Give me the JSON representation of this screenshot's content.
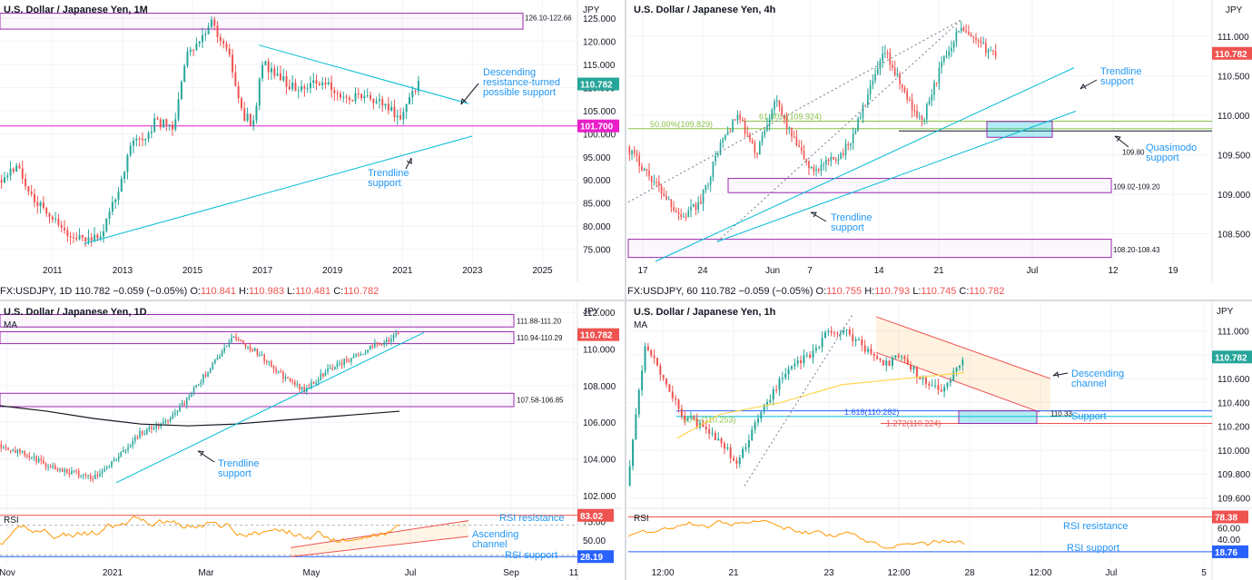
{
  "panels": [
    {
      "id": "monthly",
      "title": "U.S. Dollar / Japanese Yen, 1M",
      "currency": "JPY",
      "last_price": "110.782",
      "last_price_color": "#26a69a",
      "x_ticks": [
        "2011",
        "2013",
        "2015",
        "2017",
        "2019",
        "2021",
        "2023",
        "2025"
      ],
      "y_ticks": [
        "75.000",
        "80.000",
        "85.000",
        "90.000",
        "95.000",
        "100.000",
        "105.000",
        "110.000",
        "115.000",
        "120.000",
        "125.000"
      ],
      "level_tags": [
        {
          "text": "101.700",
          "color": "#e91ec9"
        }
      ],
      "zone_labels": [
        "126.10-122.66"
      ],
      "annotations": [
        "Descending",
        "resistance-turned",
        "possible support",
        "Trendline",
        "support"
      ]
    },
    {
      "id": "h4",
      "title": "U.S. Dollar / Japanese Yen, 4h",
      "currency": "JPY",
      "last_price": "110.782",
      "last_price_color": "#ef5350",
      "x_ticks": [
        "17",
        "24",
        "Jun",
        "7",
        "14",
        "21",
        "Jul",
        "12",
        "19"
      ],
      "y_ticks": [
        "108.500",
        "109.000",
        "109.500",
        "110.000",
        "110.500",
        "111.000"
      ],
      "zone_labels": [
        "109.02-109.20",
        "108.20-108.43",
        "109.80"
      ],
      "fib_labels": [
        "61.80%(109.924)",
        "50.00%(109.829)"
      ],
      "annotations": [
        "Trendline",
        "support",
        "Quasimodo",
        "support",
        "Trendline",
        "support"
      ]
    },
    {
      "id": "daily",
      "title": "U.S. Dollar / Japanese Yen, 1D",
      "currency": "JPY",
      "indicator": "MA",
      "last_price": "110.782",
      "last_price_color": "#ef5350",
      "x_ticks": [
        "Nov",
        "2021",
        "Mar",
        "May",
        "Jul",
        "Sep",
        "11"
      ],
      "y_ticks": [
        "102.000",
        "104.000",
        "106.000",
        "108.000",
        "110.000",
        "112.000"
      ],
      "zone_labels": [
        "111.88-111.20",
        "110.94-110.29",
        "107.58-106.85"
      ],
      "annotations": [
        "Trendline",
        "support"
      ],
      "rsi": {
        "label": "RSI",
        "y_ticks": [
          "50.00",
          "75.00"
        ],
        "tags": [
          {
            "text": "83.02",
            "color": "#ef5350"
          },
          {
            "text": "28.19",
            "color": "#2962ff"
          }
        ],
        "annotations": [
          "RSI resistance",
          "Ascending",
          "channel",
          "RSI support"
        ]
      }
    },
    {
      "id": "h1",
      "title": "U.S. Dollar / Japanese Yen, 1h",
      "currency": "JPY",
      "indicator": "MA",
      "last_price": "110.782",
      "last_price_color": "#26a69a",
      "x_ticks": [
        "12:00",
        "21",
        "23",
        "12:00",
        "28",
        "12:00",
        "Jul",
        "5"
      ],
      "y_ticks": [
        "109.600",
        "109.800",
        "110.000",
        "110.200",
        "110.400",
        "110.600",
        "110.800",
        "111.000"
      ],
      "zone_labels": [
        "110.33"
      ],
      "fib_labels": [
        "1.618(110.282)",
        "1.272(110.224)",
        "50% (110.253)"
      ],
      "annotations": [
        "Descending",
        "channel",
        "Support"
      ],
      "rsi": {
        "label": "RSI",
        "y_ticks": [
          "40.00",
          "60.00"
        ],
        "tags": [
          {
            "text": "78.38",
            "color": "#ef5350"
          },
          {
            "text": "18.76",
            "color": "#2962ff"
          }
        ],
        "annotations": [
          "RSI resistance",
          "RSI support"
        ]
      }
    }
  ],
  "ohlc_bars": [
    {
      "symbol": "FX:USDJPY, 1D",
      "last": "110.782",
      "change": "−0.059 (−0.05%)",
      "o_label": "O:",
      "o": "110.841",
      "h_label": "H:",
      "h": "110.983",
      "l_label": "L:",
      "l": "110.481",
      "c_label": "C:",
      "c": "110.782"
    },
    {
      "symbol": "FX:USDJPY, 60",
      "last": "110.782",
      "change": "−0.059 (−0.05%)",
      "o_label": "O:",
      "o": "110.755",
      "h_label": "H:",
      "h": "110.793",
      "l_label": "L:",
      "l": "110.745",
      "c_label": "C:",
      "c": "110.782"
    }
  ],
  "colors": {
    "up": "#26a69a",
    "down": "#ef5350",
    "zone": "#9c27b0",
    "trend": "#00bcd4",
    "annotation": "#2196f3",
    "magenta": "#e91ec9",
    "fib": "#8bc34a",
    "ma_black": "#131722",
    "ma_yellow": "#ffd54f",
    "rsi_line": "#ff9800"
  },
  "chart_data": [
    {
      "type": "candlestick",
      "panel": "monthly",
      "x_range": [
        2009.5,
        2026
      ],
      "ylim": [
        70,
        127
      ],
      "grid": true,
      "levels": [
        {
          "value": 101.7,
          "kind": "support"
        }
      ],
      "zones": [
        {
          "low": 122.66,
          "high": 126.1
        }
      ],
      "series_points": [
        [
          2009.5,
          90
        ],
        [
          2010,
          93
        ],
        [
          2010.5,
          86
        ],
        [
          2011,
          82
        ],
        [
          2011.5,
          78
        ],
        [
          2012,
          77
        ],
        [
          2012.5,
          79
        ],
        [
          2013,
          90
        ],
        [
          2013.3,
          98
        ],
        [
          2013.7,
          98
        ],
        [
          2014,
          103
        ],
        [
          2014.5,
          101
        ],
        [
          2014.9,
          118
        ],
        [
          2015.3,
          121
        ],
        [
          2015.6,
          124
        ],
        [
          2016,
          119
        ],
        [
          2016.5,
          104
        ],
        [
          2016.8,
          102
        ],
        [
          2017,
          116
        ],
        [
          2017.5,
          112
        ],
        [
          2018,
          110
        ],
        [
          2018.5,
          111
        ],
        [
          2019,
          110
        ],
        [
          2019.5,
          107
        ],
        [
          2020,
          109
        ],
        [
          2020.3,
          107
        ],
        [
          2020.7,
          105
        ],
        [
          2021,
          104
        ],
        [
          2021.3,
          109
        ],
        [
          2021.5,
          110.8
        ]
      ]
    },
    {
      "type": "candlestick",
      "panel": "h4",
      "ylim": [
        108.15,
        111.25
      ],
      "grid": true,
      "fib": [
        {
          "label": "61.80%",
          "value": 109.924
        },
        {
          "label": "50.00%",
          "value": 109.829
        }
      ],
      "zones": [
        {
          "low": 109.02,
          "high": 109.2
        },
        {
          "low": 108.2,
          "high": 108.43
        }
      ],
      "levels": [
        {
          "value": 109.8,
          "kind": "quasimodo support"
        }
      ],
      "series_points": [
        [
          0,
          109.6
        ],
        [
          4,
          109.3
        ],
        [
          8,
          109.0
        ],
        [
          12,
          108.7
        ],
        [
          16,
          108.9
        ],
        [
          20,
          109.6
        ],
        [
          24,
          110.0
        ],
        [
          28,
          109.5
        ],
        [
          32,
          110.2
        ],
        [
          36,
          109.7
        ],
        [
          40,
          109.3
        ],
        [
          44,
          109.4
        ],
        [
          48,
          109.6
        ],
        [
          52,
          110.2
        ],
        [
          56,
          110.8
        ],
        [
          60,
          110.3
        ],
        [
          64,
          109.9
        ],
        [
          68,
          110.6
        ],
        [
          72,
          111.1
        ],
        [
          76,
          110.9
        ],
        [
          80,
          110.78
        ]
      ]
    },
    {
      "type": "candlestick",
      "panel": "daily",
      "ylim": [
        101.5,
        112.4
      ],
      "grid": true,
      "zones": [
        {
          "low": 111.2,
          "high": 111.88
        },
        {
          "low": 110.29,
          "high": 110.94
        },
        {
          "low": 106.85,
          "high": 107.58
        }
      ],
      "series_points": [
        [
          0,
          104.8
        ],
        [
          10,
          104.3
        ],
        [
          20,
          103.7
        ],
        [
          30,
          103.3
        ],
        [
          40,
          103.0
        ],
        [
          50,
          104.0
        ],
        [
          60,
          105.4
        ],
        [
          70,
          105.9
        ],
        [
          80,
          107.2
        ],
        [
          90,
          109.0
        ],
        [
          100,
          110.7
        ],
        [
          110,
          109.8
        ],
        [
          120,
          108.6
        ],
        [
          130,
          107.7
        ],
        [
          140,
          108.9
        ],
        [
          150,
          109.5
        ],
        [
          160,
          110.2
        ],
        [
          170,
          110.78
        ]
      ],
      "ma_points": [
        [
          0,
          106.9
        ],
        [
          20,
          106.6
        ],
        [
          40,
          106.2
        ],
        [
          60,
          105.9
        ],
        [
          80,
          105.8
        ],
        [
          100,
          105.9
        ],
        [
          120,
          106.1
        ],
        [
          140,
          106.3
        ],
        [
          170,
          106.6
        ]
      ],
      "rsi": {
        "ylim": [
          20,
          90
        ],
        "levels": [
          83.02,
          28.19
        ]
      }
    },
    {
      "type": "candlestick",
      "panel": "h1",
      "ylim": [
        109.55,
        111.15
      ],
      "grid": true,
      "fib": [
        {
          "label": "1.618",
          "value": 110.282
        },
        {
          "label": "1.272",
          "value": 110.224
        }
      ],
      "levels": [
        {
          "value": 110.33,
          "kind": "support"
        }
      ],
      "series_points": [
        [
          0,
          109.7
        ],
        [
          3,
          110.9
        ],
        [
          6,
          110.6
        ],
        [
          9,
          110.3
        ],
        [
          12,
          110.2
        ],
        [
          15,
          110.1
        ],
        [
          18,
          109.9
        ],
        [
          21,
          110.2
        ],
        [
          24,
          110.5
        ],
        [
          27,
          110.7
        ],
        [
          30,
          110.8
        ],
        [
          33,
          111.0
        ],
        [
          36,
          111.0
        ],
        [
          39,
          110.85
        ],
        [
          42,
          110.7
        ],
        [
          45,
          110.8
        ],
        [
          48,
          110.6
        ],
        [
          51,
          110.5
        ],
        [
          53,
          110.6
        ],
        [
          55,
          110.78
        ]
      ],
      "ma_points": [
        [
          8,
          110.1
        ],
        [
          15,
          110.3
        ],
        [
          25,
          110.4
        ],
        [
          35,
          110.55
        ],
        [
          45,
          110.6
        ],
        [
          55,
          110.65
        ]
      ],
      "rsi": {
        "ylim": [
          0,
          90
        ],
        "levels": [
          78.38,
          18.76
        ]
      }
    }
  ]
}
